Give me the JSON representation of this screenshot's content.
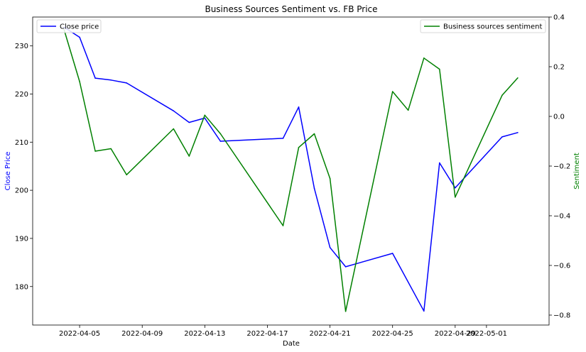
{
  "chart_data": {
    "type": "line",
    "title": "Business Sources Sentiment vs. FB Price",
    "xlabel": "Date",
    "ylabel_left": "Close Price",
    "ylabel_right": "Sentiment",
    "x_tick_labels": [
      "2022-04-05",
      "2022-04-09",
      "2022-04-13",
      "2022-04-17",
      "2022-04-21",
      "2022-04-25",
      "2022-04-29",
      "2022-05-01"
    ],
    "x_ticks": [
      "2022-04-05",
      "2022-04-09",
      "2022-04-13",
      "2022-04-17",
      "2022-04-21",
      "2022-04-25",
      "2022-04-29",
      "2022-05-01"
    ],
    "xlim": [
      "2022-04-02",
      "2022-05-05"
    ],
    "ylim_left": [
      172,
      236
    ],
    "ylim_right": [
      -0.84,
      0.4
    ],
    "y_ticks_left": [
      180,
      190,
      200,
      210,
      220,
      230
    ],
    "y_ticks_right": [
      -0.8,
      -0.6,
      -0.4,
      -0.2,
      0.0,
      0.2,
      0.4
    ],
    "y_tick_labels_left": [
      "180",
      "190",
      "200",
      "210",
      "220",
      "230"
    ],
    "y_tick_labels_right": [
      "−0.8",
      "−0.6",
      "−0.4",
      "−0.2",
      "0.0",
      "0.2",
      "0.4"
    ],
    "grid": false,
    "series": [
      {
        "name": "Close price",
        "axis": "left",
        "color": "#0000ff",
        "x": [
          "2022-04-04",
          "2022-04-05",
          "2022-04-06",
          "2022-04-07",
          "2022-04-08",
          "2022-04-11",
          "2022-04-12",
          "2022-04-13",
          "2022-04-14",
          "2022-04-18",
          "2022-04-19",
          "2022-04-20",
          "2022-04-21",
          "2022-04-22",
          "2022-04-25",
          "2022-04-27",
          "2022-04-28",
          "2022-04-29",
          "2022-05-02",
          "2022-05-03"
        ],
        "values": [
          233.9,
          231.8,
          223.3,
          222.9,
          222.3,
          216.5,
          214.1,
          215.0,
          210.2,
          210.8,
          217.3,
          200.4,
          188.1,
          184.1,
          186.9,
          174.9,
          205.7,
          200.5,
          211.1,
          212.0
        ]
      },
      {
        "name": "Business sources sentiment",
        "axis": "right",
        "color": "#008000",
        "x": [
          "2022-04-04",
          "2022-04-05",
          "2022-04-06",
          "2022-04-07",
          "2022-04-08",
          "2022-04-11",
          "2022-04-12",
          "2022-04-13",
          "2022-04-14",
          "2022-04-18",
          "2022-04-19",
          "2022-04-20",
          "2022-04-21",
          "2022-04-22",
          "2022-04-25",
          "2022-04-26",
          "2022-04-27",
          "2022-04-28",
          "2022-04-29",
          "2022-05-02",
          "2022-05-03"
        ],
        "values": [
          0.35,
          0.14,
          -0.14,
          -0.13,
          -0.235,
          -0.05,
          -0.16,
          0.005,
          -0.07,
          -0.44,
          -0.125,
          -0.07,
          -0.25,
          -0.785,
          0.1,
          0.025,
          0.235,
          0.19,
          -0.325,
          0.085,
          0.155
        ]
      }
    ],
    "legends": [
      {
        "placement": "upper-left",
        "label": "Close price",
        "color": "#0000ff"
      },
      {
        "placement": "upper-right",
        "label": "Business sources sentiment",
        "color": "#008000"
      }
    ]
  }
}
